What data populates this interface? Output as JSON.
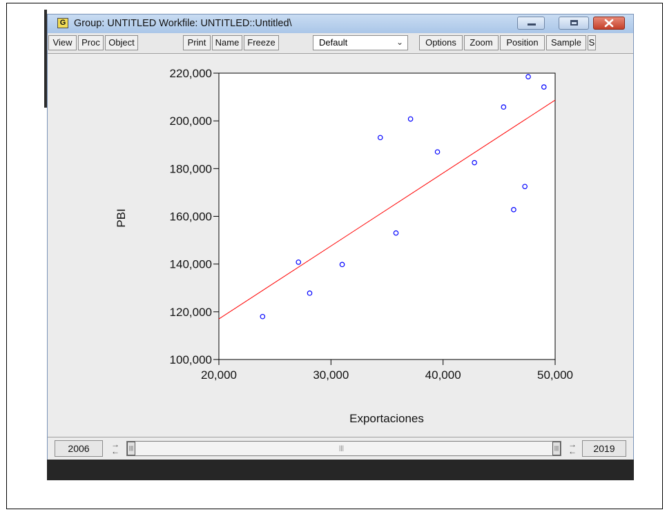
{
  "window": {
    "icon_letter": "G",
    "title": "Group: UNTITLED   Workfile: UNTITLED::Untitled\\",
    "controls": [
      "minimize-icon",
      "maximize-icon",
      "close-icon"
    ]
  },
  "toolbar": {
    "left_buttons": [
      "View",
      "Proc",
      "Object"
    ],
    "mid_buttons": [
      "Print",
      "Name",
      "Freeze"
    ],
    "dropdown_value": "Default",
    "right_buttons": [
      "Options",
      "Zoom",
      "Position",
      "Sample",
      "S"
    ]
  },
  "statusbar": {
    "start_year": "2006",
    "end_year": "2019"
  },
  "chart_data": {
    "type": "scatter",
    "xlabel": "Exportaciones",
    "ylabel": "PBI",
    "xlim": [
      20000,
      50000
    ],
    "ylim": [
      100000,
      220000
    ],
    "x_ticks": [
      20000,
      30000,
      40000,
      50000
    ],
    "x_tick_labels": [
      "20,000",
      "30,000",
      "40,000",
      "50,000"
    ],
    "y_ticks": [
      100000,
      120000,
      140000,
      160000,
      180000,
      200000,
      220000
    ],
    "y_tick_labels": [
      "100,000",
      "120,000",
      "140,000",
      "160,000",
      "180,000",
      "200,000",
      "220,000"
    ],
    "points": [
      {
        "x": 23900,
        "y": 118000
      },
      {
        "x": 27100,
        "y": 140800
      },
      {
        "x": 28100,
        "y": 127800
      },
      {
        "x": 31000,
        "y": 139800
      },
      {
        "x": 34400,
        "y": 193000
      },
      {
        "x": 35800,
        "y": 153000
      },
      {
        "x": 37100,
        "y": 200800
      },
      {
        "x": 39500,
        "y": 187000
      },
      {
        "x": 42800,
        "y": 182500
      },
      {
        "x": 45400,
        "y": 205800
      },
      {
        "x": 46300,
        "y": 162800
      },
      {
        "x": 47300,
        "y": 172500
      },
      {
        "x": 47600,
        "y": 218500
      },
      {
        "x": 49000,
        "y": 214200
      }
    ],
    "fit_line": {
      "x": [
        20000,
        50000
      ],
      "y": [
        117000,
        208700
      ]
    },
    "marker_color": "#0000ff",
    "line_color": "#ff0000",
    "grid": false,
    "legend": "none"
  }
}
